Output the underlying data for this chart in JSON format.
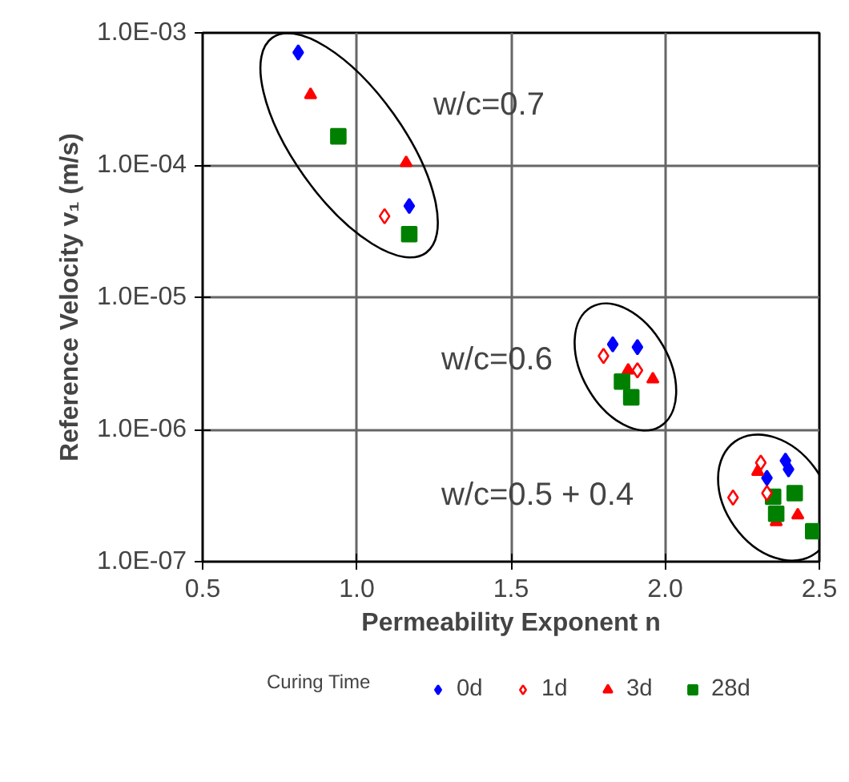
{
  "chart_data": {
    "type": "scatter",
    "xlabel": "Permeability Exponent n",
    "ylabel": "Reference Velocity v₁ (m/s)",
    "legend_title": "Curing Time",
    "legend": "bottom",
    "grid": true,
    "log": "y",
    "xlim": [
      0.5,
      2.5
    ],
    "ylim": [
      1e-07,
      0.001
    ],
    "xticks": [
      0.5,
      {
        "value": 1,
        "label": "1.0"
      },
      1.5,
      {
        "value": 2,
        "label": "2.0"
      },
      2.5
    ],
    "yticks": [
      {
        "value": 1e-07,
        "label": "1.0E-07"
      },
      {
        "value": 1e-06,
        "label": "1.0E-06"
      },
      {
        "value": 1e-05,
        "label": "1.0E-05"
      },
      {
        "value": 0.0001,
        "label": "1.0E-04"
      },
      {
        "value": 0.001,
        "label": "1.0E-03"
      }
    ],
    "annotations": [
      "w/c=0.7",
      "w/c=0.6",
      "w/c=0.5 + 0.4"
    ],
    "series": [
      {
        "name": "0d",
        "color": "#0000ff",
        "marker": "diamond",
        "x": [
          0.81,
          1.17,
          1.83,
          1.91,
          2.39,
          2.4,
          2.33
        ],
        "values": [
          0.00071,
          4.9e-05,
          4.4e-06,
          4.2e-06,
          5.8e-07,
          5e-07,
          4.3e-07
        ]
      },
      {
        "name": "1d",
        "color": "#ff0000",
        "marker": "diamond_open",
        "x": [
          1.09,
          1.8,
          1.91,
          2.31,
          2.22,
          2.33
        ],
        "values": [
          4.1e-05,
          3.6e-06,
          2.8e-06,
          5.6e-07,
          3.05e-07,
          3.3e-07
        ]
      },
      {
        "name": "3d",
        "color": "#ff0000",
        "marker": "triangle",
        "x": [
          0.85,
          1.16,
          1.88,
          1.96,
          2.3,
          2.36,
          2.43
        ],
        "values": [
          0.00034,
          0.000104,
          2.8e-06,
          2.4e-06,
          4.8e-07,
          2e-07,
          2.25e-07
        ]
      },
      {
        "name": "28d",
        "color": "#008000",
        "marker": "square",
        "x": [
          0.94,
          1.17,
          1.86,
          1.89,
          2.35,
          2.42,
          2.36,
          2.48
        ],
        "values": [
          0.000165,
          3e-05,
          2.3e-06,
          1.75e-06,
          3.1e-07,
          3.3e-07,
          2.3e-07,
          1.7e-07
        ]
      }
    ]
  }
}
